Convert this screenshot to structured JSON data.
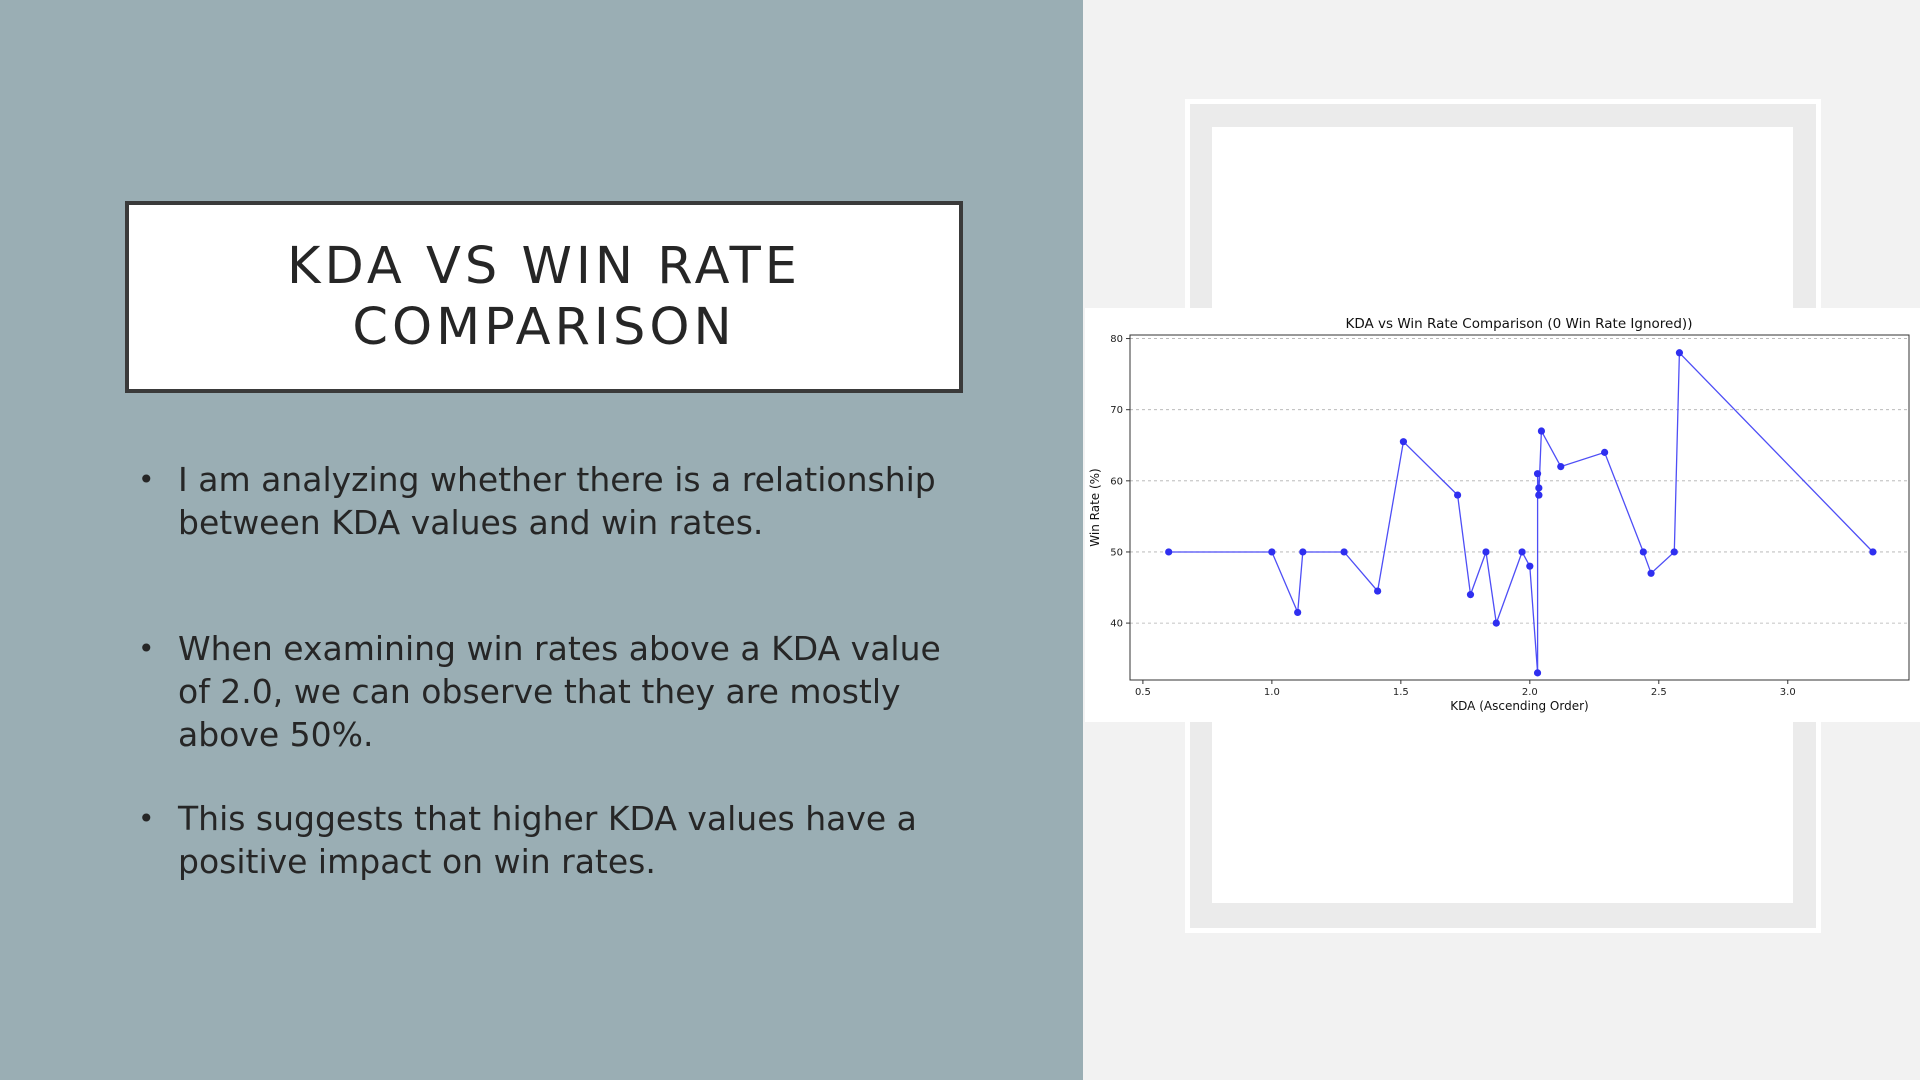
{
  "slide": {
    "title": "KDA vs Win Rate Comparison",
    "bullets": [
      "I am analyzing whether there is a relationship between KDA values and win rates.",
      "When examining win rates above a KDA value of 2.0, we can observe that they are mostly above 50%.",
      "This suggests that higher KDA values have a positive impact on win rates."
    ],
    "bullet_glyph": "•"
  },
  "colors": {
    "left_panel": "#9aaeb4",
    "right_panel": "#f2f2f2",
    "line": "#3b3bf5",
    "marker": "#2f2ff0"
  },
  "chart_data": {
    "type": "line",
    "title": "KDA vs Win Rate Comparison (0 Win Rate Ignored))",
    "xlabel": "KDA (Ascending Order)",
    "ylabel": "Win Rate (%)",
    "xlim": [
      0.45,
      3.47
    ],
    "ylim": [
      32,
      80.5
    ],
    "xticks": [
      0.5,
      1.0,
      1.5,
      2.0,
      2.5,
      3.0
    ],
    "yticks": [
      40,
      50,
      60,
      70,
      80
    ],
    "grid": "y-dashed",
    "series": [
      {
        "x": [
          0.6,
          1.0,
          1.1,
          1.12,
          1.28,
          1.41,
          1.51,
          1.72,
          1.77,
          1.83,
          1.87,
          1.97,
          2.0,
          2.03,
          2.03,
          2.035,
          2.035,
          2.035,
          2.045,
          2.12,
          2.29,
          2.44,
          2.47,
          2.56,
          2.58,
          3.33
        ],
        "y": [
          50,
          50,
          41.5,
          50,
          50,
          44.5,
          65.5,
          58,
          44,
          50,
          40,
          50,
          48,
          33,
          61,
          58,
          59,
          58,
          67,
          62,
          64,
          50,
          47,
          50,
          78,
          50
        ]
      }
    ]
  }
}
